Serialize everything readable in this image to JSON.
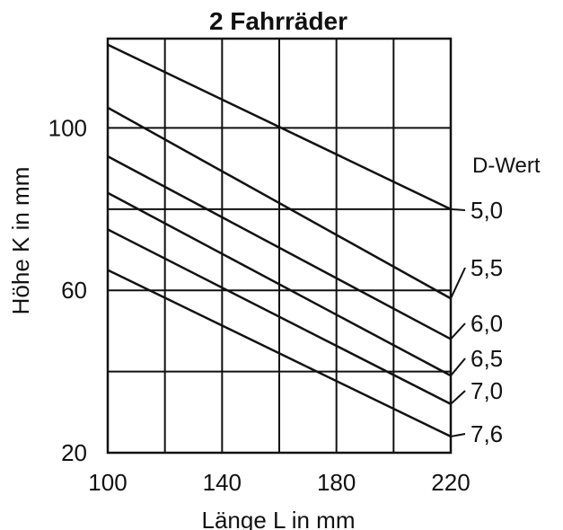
{
  "chart_data": {
    "type": "line",
    "title": "2  Fahrräder",
    "xlabel": "Länge L in mm",
    "ylabel": "Höhe K in mm",
    "xlim": [
      100,
      220
    ],
    "ylim": [
      20,
      122
    ],
    "xticks": [
      100,
      140,
      180,
      220
    ],
    "yticks": [
      20,
      60,
      100
    ],
    "x_grid": [
      100,
      120,
      140,
      160,
      180,
      200,
      220
    ],
    "y_grid": [
      20,
      40,
      60,
      80,
      100
    ],
    "legend_title": "D-Wert",
    "series": [
      {
        "name": "5,0",
        "x": [
          100,
          220
        ],
        "values": [
          120.5,
          80
        ]
      },
      {
        "name": "5,5",
        "x": [
          100,
          220
        ],
        "values": [
          105,
          58
        ]
      },
      {
        "name": "6,0",
        "x": [
          100,
          220
        ],
        "values": [
          93,
          48
        ]
      },
      {
        "name": "6,5",
        "x": [
          100,
          220
        ],
        "values": [
          84,
          39
        ]
      },
      {
        "name": "7,0",
        "x": [
          100,
          220
        ],
        "values": [
          75,
          32
        ]
      },
      {
        "name": "7,6",
        "x": [
          100,
          220
        ],
        "values": [
          65,
          24
        ]
      }
    ]
  }
}
